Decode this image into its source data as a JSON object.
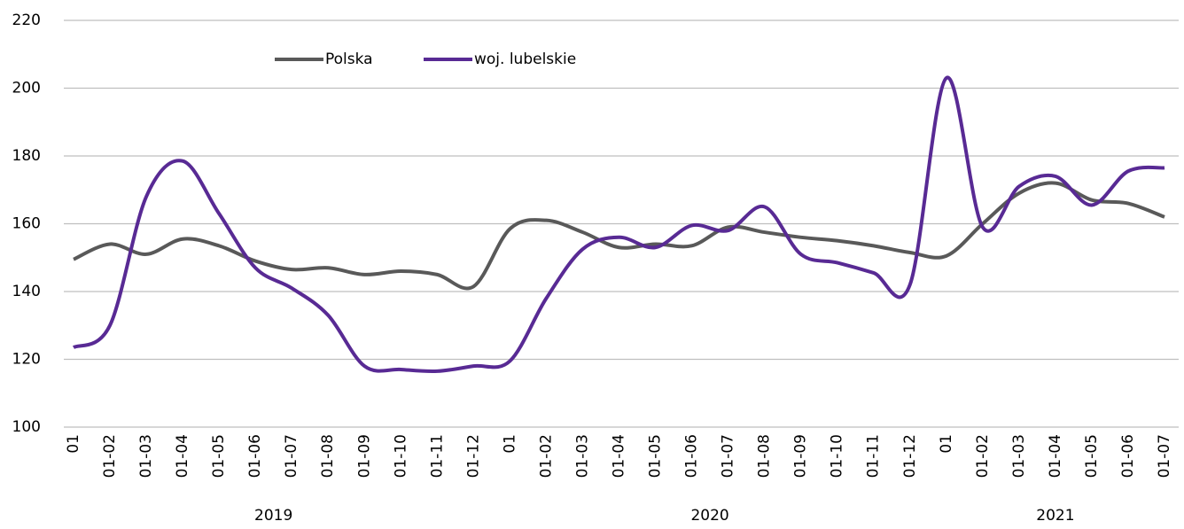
{
  "chart_data": {
    "type": "line",
    "categories": [
      "01",
      "01-02",
      "01-03",
      "01-04",
      "01-05",
      "01-06",
      "01-07",
      "01-08",
      "01-09",
      "01-10",
      "01-11",
      "01-12",
      "01",
      "01-02",
      "01-03",
      "01-04",
      "01-05",
      "01-06",
      "01-07",
      "01-08",
      "01-09",
      "01-10",
      "01-11",
      "01-12",
      "01",
      "01-02",
      "01-03",
      "01-04",
      "01-05",
      "01-06",
      "01-07"
    ],
    "groups": [
      "2019",
      "2020",
      "2021"
    ],
    "series": [
      {
        "name": "Polska",
        "color": "#595959",
        "values": [
          149.5,
          154,
          151,
          155.5,
          153.5,
          149,
          146.5,
          147,
          145,
          146,
          145,
          141.5,
          158.5,
          161,
          157.5,
          153,
          154,
          153.5,
          159,
          157.5,
          156,
          155,
          153.5,
          151.5,
          150.5,
          160,
          169,
          172,
          167,
          166,
          162
        ]
      },
      {
        "name": "woj. lubelskie",
        "color": "#582a94",
        "values": [
          123.5,
          130,
          168,
          178.5,
          163,
          147,
          141,
          133,
          118,
          117,
          116.5,
          118,
          119.5,
          138,
          152.5,
          156,
          153,
          159.5,
          158,
          165,
          151,
          148.5,
          145.5,
          142,
          203,
          159,
          171,
          174,
          165.5,
          175.5,
          176.5
        ]
      }
    ],
    "ylim": [
      100,
      220
    ],
    "yticks": [
      100,
      120,
      140,
      160,
      180,
      200,
      220
    ],
    "grid": true,
    "legend": "top"
  }
}
